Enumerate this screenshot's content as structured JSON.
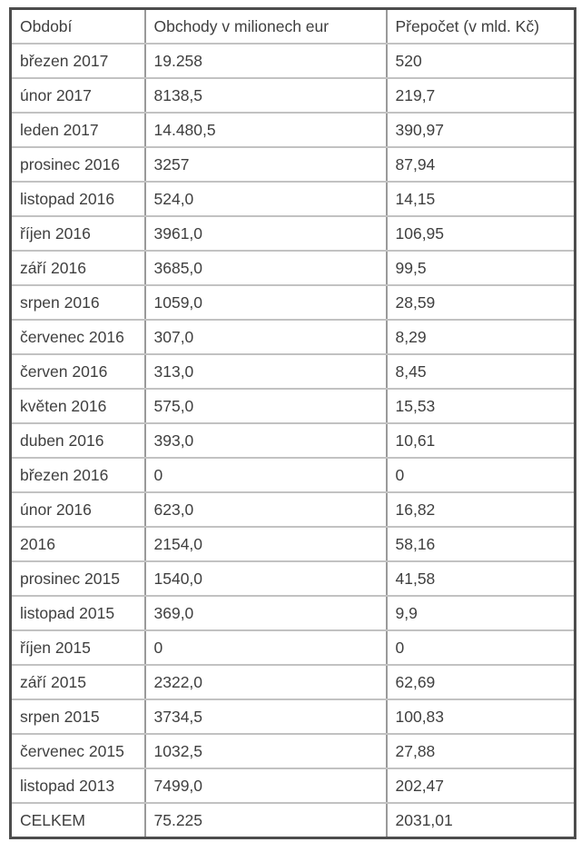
{
  "table": {
    "columns": [
      "Období",
      "Obchody v milionech eur",
      "Přepočet (v mld. Kč)"
    ],
    "rows": [
      {
        "cells": [
          "březen 2017",
          "19.258",
          "520"
        ]
      },
      {
        "cells": [
          "únor 2017",
          "8138,5",
          "219,7"
        ]
      },
      {
        "cells": [
          "leden 2017",
          "14.480,5",
          "390,97"
        ]
      },
      {
        "cells": [
          "prosinec 2016",
          "3257",
          "87,94"
        ]
      },
      {
        "cells": [
          "listopad 2016",
          "524,0",
          "14,15"
        ]
      },
      {
        "cells": [
          "říjen 2016",
          "3961,0",
          "106,95"
        ]
      },
      {
        "cells": [
          "září 2016",
          "3685,0",
          "99,5"
        ]
      },
      {
        "cells": [
          "srpen 2016",
          "1059,0",
          "28,59"
        ]
      },
      {
        "cells": [
          "červenec 2016",
          "307,0",
          "8,29"
        ]
      },
      {
        "cells": [
          "červen 2016",
          "313,0",
          "8,45"
        ]
      },
      {
        "cells": [
          "květen 2016",
          "575,0",
          "15,53"
        ]
      },
      {
        "cells": [
          "duben 2016",
          "393,0",
          "10,61"
        ]
      },
      {
        "cells": [
          "březen 2016",
          "0",
          "0"
        ]
      },
      {
        "cells": [
          "únor 2016",
          "623,0",
          "16,82"
        ]
      },
      {
        "cells": [
          "2016",
          "2154,0",
          "58,16"
        ]
      },
      {
        "cells": [
          "prosinec 2015",
          "1540,0",
          "41,58"
        ]
      },
      {
        "cells": [
          "listopad 2015",
          "369,0",
          "9,9"
        ]
      },
      {
        "cells": [
          "říjen 2015",
          "0",
          "0"
        ]
      },
      {
        "cells": [
          "září 2015",
          "2322,0",
          "62,69"
        ]
      },
      {
        "cells": [
          "srpen 2015",
          "3734,5",
          "100,83"
        ]
      },
      {
        "cells": [
          "červenec 2015",
          "1032,5",
          "27,88"
        ]
      },
      {
        "cells": [
          "listopad 2013",
          "7499,0",
          "202,47"
        ]
      },
      {
        "cells": [
          "CELKEM",
          "75.225",
          "2031,01"
        ]
      }
    ]
  },
  "colors": {
    "text": "#3f3f3f",
    "outer_border": "#4d4d4d",
    "inner_border_horizontal": "#c2c2c2",
    "inner_border_vertical": "#9a9a9a",
    "background": "#ffffff"
  },
  "chart_data": {
    "type": "table",
    "title": "",
    "columns": [
      "Období",
      "Obchody v milionech eur",
      "Přepočet (v mld. Kč)"
    ],
    "rows": [
      [
        "březen 2017",
        "19.258",
        "520"
      ],
      [
        "únor 2017",
        "8138,5",
        "219,7"
      ],
      [
        "leden 2017",
        "14.480,5",
        "390,97"
      ],
      [
        "prosinec 2016",
        "3257",
        "87,94"
      ],
      [
        "listopad 2016",
        "524,0",
        "14,15"
      ],
      [
        "říjen 2016",
        "3961,0",
        "106,95"
      ],
      [
        "září 2016",
        "3685,0",
        "99,5"
      ],
      [
        "srpen 2016",
        "1059,0",
        "28,59"
      ],
      [
        "červenec 2016",
        "307,0",
        "8,29"
      ],
      [
        "červen 2016",
        "313,0",
        "8,45"
      ],
      [
        "květen 2016",
        "575,0",
        "15,53"
      ],
      [
        "duben 2016",
        "393,0",
        "10,61"
      ],
      [
        "březen 2016",
        "0",
        "0"
      ],
      [
        "únor 2016",
        "623,0",
        "16,82"
      ],
      [
        "2016",
        "2154,0",
        "58,16"
      ],
      [
        "prosinec 2015",
        "1540,0",
        "41,58"
      ],
      [
        "listopad 2015",
        "369,0",
        "9,9"
      ],
      [
        "říjen 2015",
        "0",
        "0"
      ],
      [
        "září 2015",
        "2322,0",
        "62,69"
      ],
      [
        "srpen 2015",
        "3734,5",
        "100,83"
      ],
      [
        "červenec 2015",
        "1032,5",
        "27,88"
      ],
      [
        "listopad 2013",
        "7499,0",
        "202,47"
      ],
      [
        "CELKEM",
        "75.225",
        "2031,01"
      ]
    ]
  }
}
